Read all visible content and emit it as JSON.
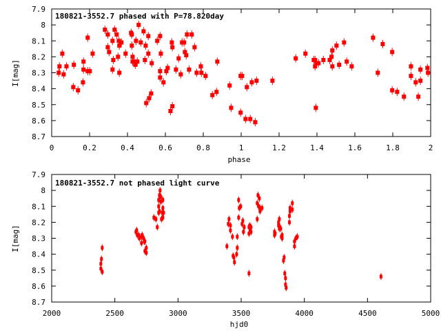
{
  "chart_data": [
    {
      "type": "scatter",
      "title": "180821-3552.7 phased with P=78.820day",
      "xlabel": "phase",
      "ylabel": "I[mag]",
      "xlim": [
        0,
        2
      ],
      "ylim": [
        8.7,
        7.9
      ],
      "y_inverted": true,
      "xticks": [
        0,
        0.2,
        0.4,
        0.6,
        0.8,
        1,
        1.2,
        1.4,
        1.6,
        1.8,
        2
      ],
      "xtick_labels": [
        "0",
        "0.2",
        "0.4",
        "0.6",
        "0.8",
        "1",
        "1.2",
        "1.4",
        "1.6",
        "1.8",
        "2"
      ],
      "yticks": [
        7.9,
        8,
        8.1,
        8.2,
        8.3,
        8.4,
        8.5,
        8.6,
        8.7
      ],
      "ytick_labels": [
        "7.9",
        "8",
        "8.1",
        "8.2",
        "8.3",
        "8.4",
        "8.5",
        "8.6",
        "8.7"
      ],
      "grid": false,
      "color": "#ff0000",
      "points": [
        [
          0.037,
          8.3
        ],
        [
          0.041,
          8.26
        ],
        [
          0.056,
          8.18
        ],
        [
          0.063,
          8.31
        ],
        [
          0.078,
          8.26
        ],
        [
          0.114,
          8.39
        ],
        [
          0.117,
          8.25
        ],
        [
          0.139,
          8.41
        ],
        [
          0.165,
          8.36
        ],
        [
          0.168,
          8.23
        ],
        [
          0.168,
          8.28
        ],
        [
          0.19,
          8.08
        ],
        [
          0.19,
          8.29
        ],
        [
          0.201,
          8.29
        ],
        [
          0.216,
          8.18
        ],
        [
          0.281,
          8.03
        ],
        [
          0.296,
          8.06
        ],
        [
          0.296,
          8.14
        ],
        [
          0.303,
          8.17
        ],
        [
          0.321,
          8.1
        ],
        [
          0.325,
          8.22
        ],
        [
          0.321,
          8.28
        ],
        [
          0.332,
          8.03
        ],
        [
          0.343,
          8.06
        ],
        [
          0.35,
          8.2
        ],
        [
          0.354,
          8.1
        ],
        [
          0.357,
          8.13
        ],
        [
          0.368,
          8.11
        ],
        [
          0.357,
          8.3
        ],
        [
          0.39,
          8.18
        ],
        [
          0.419,
          8.05
        ],
        [
          0.423,
          8.06
        ],
        [
          0.423,
          8.13
        ],
        [
          0.427,
          8.2
        ],
        [
          0.427,
          8.23
        ],
        [
          0.434,
          8.23
        ],
        [
          0.441,
          8.25
        ],
        [
          0.445,
          8.1
        ],
        [
          0.452,
          8.23
        ],
        [
          0.459,
          8.0
        ],
        [
          0.47,
          8.11
        ],
        [
          0.485,
          8.04
        ],
        [
          0.492,
          8.22
        ],
        [
          0.496,
          8.13
        ],
        [
          0.499,
          8.49
        ],
        [
          0.51,
          8.07
        ],
        [
          0.51,
          8.18
        ],
        [
          0.514,
          8.46
        ],
        [
          0.525,
          8.43
        ],
        [
          0.528,
          8.24
        ],
        [
          0.557,
          8.1
        ],
        [
          0.572,
          8.07
        ],
        [
          0.572,
          8.29
        ],
        [
          0.572,
          8.33
        ],
        [
          0.576,
          8.18
        ],
        [
          0.59,
          8.36
        ],
        [
          0.605,
          8.29
        ],
        [
          0.612,
          8.27
        ],
        [
          0.627,
          8.54
        ],
        [
          0.634,
          8.11
        ],
        [
          0.637,
          8.14
        ],
        [
          0.637,
          8.51
        ],
        [
          0.656,
          8.28
        ],
        [
          0.67,
          8.21
        ],
        [
          0.681,
          8.31
        ],
        [
          0.688,
          8.11
        ],
        [
          0.699,
          8.11
        ],
        [
          0.703,
          8.17
        ],
        [
          0.71,
          8.19
        ],
        [
          0.714,
          8.06
        ],
        [
          0.725,
          8.28
        ],
        [
          0.739,
          8.06
        ],
        [
          0.754,
          8.14
        ],
        [
          0.765,
          8.3
        ],
        [
          0.787,
          8.26
        ],
        [
          0.79,
          8.3
        ],
        [
          0.812,
          8.32
        ],
        [
          0.848,
          8.44
        ],
        [
          0.87,
          8.42
        ],
        [
          0.874,
          8.23
        ],
        [
          0.939,
          8.38
        ],
        [
          0.947,
          8.52
        ],
        [
          0.997,
          8.55
        ],
        [
          0.997,
          8.32
        ],
        [
          1.005,
          8.32
        ],
        [
          1.023,
          8.59
        ],
        [
          1.03,
          8.39
        ],
        [
          1.048,
          8.59
        ],
        [
          1.056,
          8.36
        ],
        [
          1.074,
          8.61
        ],
        [
          1.081,
          8.35
        ],
        [
          1.165,
          8.35
        ],
        [
          1.288,
          8.21
        ],
        [
          1.339,
          8.18
        ],
        [
          1.383,
          8.22
        ],
        [
          1.39,
          8.22
        ],
        [
          1.39,
          8.26
        ],
        [
          1.394,
          8.52
        ],
        [
          1.397,
          8.24
        ],
        [
          1.408,
          8.24
        ],
        [
          1.434,
          8.22
        ],
        [
          1.467,
          8.22
        ],
        [
          1.477,
          8.2
        ],
        [
          1.481,
          8.16
        ],
        [
          1.481,
          8.26
        ],
        [
          1.503,
          8.13
        ],
        [
          1.517,
          8.25
        ],
        [
          1.543,
          8.11
        ],
        [
          1.557,
          8.23
        ],
        [
          1.583,
          8.26
        ],
        [
          1.696,
          8.08
        ],
        [
          1.721,
          8.3
        ],
        [
          1.747,
          8.12
        ],
        [
          1.797,
          8.17
        ],
        [
          1.797,
          8.41
        ],
        [
          1.823,
          8.42
        ],
        [
          1.859,
          8.45
        ],
        [
          1.896,
          8.26
        ],
        [
          1.896,
          8.32
        ],
        [
          1.921,
          8.36
        ],
        [
          1.935,
          8.45
        ],
        [
          1.946,
          8.28
        ],
        [
          1.946,
          8.35
        ],
        [
          1.983,
          8.27
        ],
        [
          1.986,
          8.3
        ]
      ]
    },
    {
      "type": "scatter",
      "title": "180821-3552.7 not phased light curve",
      "xlabel": "hjd0",
      "ylabel": "I[mag]",
      "xlim": [
        2000,
        5000
      ],
      "ylim": [
        8.7,
        7.9
      ],
      "y_inverted": true,
      "xticks": [
        2000,
        2500,
        3000,
        3500,
        4000,
        4500,
        5000
      ],
      "xtick_labels": [
        "2000",
        "2500",
        "3000",
        "3500",
        "4000",
        "4500",
        "5000"
      ],
      "yticks": [
        7.9,
        8,
        8.1,
        8.2,
        8.3,
        8.4,
        8.5,
        8.6,
        8.7
      ],
      "ytick_labels": [
        "7.9",
        "8",
        "8.1",
        "8.2",
        "8.3",
        "8.4",
        "8.5",
        "8.6",
        "8.7"
      ],
      "grid": false,
      "color": "#ff0000",
      "points": [
        [
          2400,
          8.36
        ],
        [
          2394,
          8.43
        ],
        [
          2389,
          8.46
        ],
        [
          2389,
          8.49
        ],
        [
          2400,
          8.51
        ],
        [
          2673,
          8.25
        ],
        [
          2667,
          8.26
        ],
        [
          2678,
          8.28
        ],
        [
          2689,
          8.28
        ],
        [
          2694,
          8.3
        ],
        [
          2716,
          8.28
        ],
        [
          2711,
          8.29
        ],
        [
          2727,
          8.3
        ],
        [
          2738,
          8.32
        ],
        [
          2733,
          8.32
        ],
        [
          2711,
          8.33
        ],
        [
          2749,
          8.36
        ],
        [
          2738,
          8.38
        ],
        [
          2749,
          8.39
        ],
        [
          2809,
          8.17
        ],
        [
          2825,
          8.18
        ],
        [
          2836,
          8.23
        ],
        [
          2858,
          8.0
        ],
        [
          2853,
          8.03
        ],
        [
          2864,
          8.04
        ],
        [
          2847,
          8.06
        ],
        [
          2864,
          8.07
        ],
        [
          2880,
          8.06
        ],
        [
          2847,
          8.1
        ],
        [
          2880,
          8.11
        ],
        [
          2853,
          8.13
        ],
        [
          2847,
          8.14
        ],
        [
          2875,
          8.14
        ],
        [
          2886,
          8.14
        ],
        [
          2869,
          8.18
        ],
        [
          2880,
          8.17
        ],
        [
          3387,
          8.35
        ],
        [
          3404,
          8.18
        ],
        [
          3398,
          8.21
        ],
        [
          3415,
          8.22
        ],
        [
          3415,
          8.25
        ],
        [
          3431,
          8.29
        ],
        [
          3436,
          8.41
        ],
        [
          3442,
          8.42
        ],
        [
          3447,
          8.45
        ],
        [
          3464,
          8.4
        ],
        [
          3469,
          8.29
        ],
        [
          3469,
          8.36
        ],
        [
          3480,
          8.06
        ],
        [
          3485,
          8.11
        ],
        [
          3496,
          8.1
        ],
        [
          3480,
          8.17
        ],
        [
          3507,
          8.21
        ],
        [
          3513,
          8.19
        ],
        [
          3524,
          8.23
        ],
        [
          3518,
          8.26
        ],
        [
          3562,
          8.52
        ],
        [
          3562,
          8.23
        ],
        [
          3562,
          8.27
        ],
        [
          3567,
          8.22
        ],
        [
          3573,
          8.25
        ],
        [
          3578,
          8.23
        ],
        [
          3578,
          8.26
        ],
        [
          3633,
          8.03
        ],
        [
          3644,
          8.05
        ],
        [
          3627,
          8.08
        ],
        [
          3638,
          8.1
        ],
        [
          3649,
          8.11
        ],
        [
          3665,
          8.11
        ],
        [
          3649,
          8.13
        ],
        [
          3627,
          8.18
        ],
        [
          3802,
          8.18
        ],
        [
          3796,
          8.2
        ],
        [
          3796,
          8.22
        ],
        [
          3807,
          8.23
        ],
        [
          3802,
          8.24
        ],
        [
          3813,
          8.24
        ],
        [
          3764,
          8.26
        ],
        [
          3769,
          8.27
        ],
        [
          3764,
          8.28
        ],
        [
          3824,
          8.28
        ],
        [
          3818,
          8.29
        ],
        [
          3824,
          8.3
        ],
        [
          3840,
          8.42
        ],
        [
          3835,
          8.44
        ],
        [
          3845,
          8.52
        ],
        [
          3851,
          8.55
        ],
        [
          3851,
          8.59
        ],
        [
          3856,
          8.61
        ],
        [
          3905,
          8.08
        ],
        [
          3887,
          8.11
        ],
        [
          3905,
          8.12
        ],
        [
          3887,
          8.13
        ],
        [
          3882,
          8.16
        ],
        [
          3882,
          8.2
        ],
        [
          3944,
          8.29
        ],
        [
          3933,
          8.3
        ],
        [
          3922,
          8.32
        ],
        [
          3922,
          8.35
        ],
        [
          4607,
          8.54
        ]
      ]
    }
  ]
}
